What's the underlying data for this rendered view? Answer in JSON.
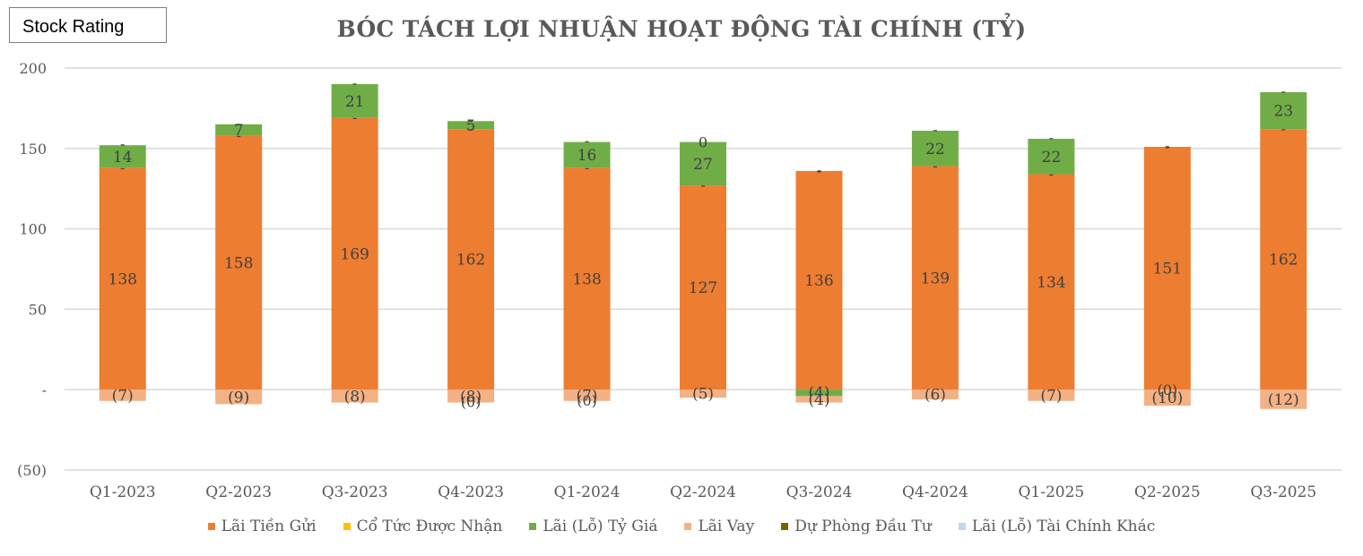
{
  "badge": "Stock Rating",
  "chart_data": {
    "type": "bar",
    "stacked": true,
    "title": "BÓC TÁCH LỢI NHUẬN HOẠT ĐỘNG TÀI CHÍNH (TỶ)",
    "xlabel": "",
    "ylabel": "",
    "ylim": [
      -50,
      200
    ],
    "yticks": [
      200,
      150,
      100,
      50,
      0,
      -50
    ],
    "ytick_labels": [
      "200",
      "150",
      "100",
      "50",
      "-",
      "(50)"
    ],
    "grid": true,
    "legend_position": "bottom",
    "categories": [
      "Q1-2023",
      "Q2-2023",
      "Q3-2023",
      "Q4-2023",
      "Q1-2024",
      "Q2-2024",
      "Q3-2024",
      "Q4-2024",
      "Q1-2025",
      "Q2-2025",
      "Q3-2025"
    ],
    "series": [
      {
        "name": "Lãi Tiền Gửi",
        "color": "#ed7d31",
        "values": [
          138,
          158,
          169,
          162,
          138,
          127,
          136,
          139,
          134,
          151,
          162
        ],
        "labels": [
          "138",
          "158",
          "169",
          "162",
          "138",
          "127",
          "136",
          "139",
          "134",
          "151",
          "162"
        ]
      },
      {
        "name": "Cổ Tức Được Nhận",
        "color": "#ffc000",
        "values": [
          0,
          0,
          0,
          0,
          0,
          0,
          0,
          0,
          0,
          0,
          0
        ],
        "labels": [
          "-",
          "-",
          "-",
          "-",
          "-",
          "-",
          "-",
          "-",
          "-",
          "-",
          "-"
        ]
      },
      {
        "name": "Lãi (Lỗ) Tỷ Giá",
        "color": "#70ad47",
        "values": [
          14,
          7,
          21,
          5,
          16,
          27,
          0,
          22,
          22,
          0,
          23
        ],
        "labels": [
          "14",
          "7",
          "21",
          "5",
          "16",
          "27",
          "",
          "22",
          "22",
          "",
          "23"
        ]
      },
      {
        "name": "Lãi Vay",
        "color": "#f4b183",
        "values": [
          -7,
          -9,
          -8,
          -8,
          -7,
          -5,
          -4,
          -6,
          -7,
          -10,
          -12
        ],
        "labels": [
          "(7)",
          "(9)",
          "(8)",
          "(8)",
          "(7)",
          "(5)",
          "(4)",
          "(6)",
          "(7)",
          "(10)",
          "(12)"
        ]
      },
      {
        "name": "Dự Phòng Đầu Tư",
        "color": "#7f6000",
        "values": [
          0,
          0,
          0,
          0,
          0,
          0,
          0,
          0,
          0,
          0,
          0
        ],
        "labels": [
          "",
          "",
          "",
          "(0)",
          "(0)",
          "",
          "",
          "",
          "",
          "(0)",
          ""
        ]
      },
      {
        "name": "Lãi (Lỗ) Tài Chính Khác",
        "color": "#bdd7ee",
        "values": [
          0,
          0,
          0,
          0,
          0,
          0,
          0,
          0,
          0,
          0,
          0
        ],
        "labels": [
          "-",
          "-",
          "-",
          "-",
          "-",
          "0",
          "-",
          "-",
          "-",
          "-",
          "-"
        ]
      }
    ],
    "extra_segments": [
      {
        "category_index": 6,
        "series": "Lãi (Lỗ) Tỷ Giá",
        "value": -4,
        "label": "(4)"
      }
    ]
  }
}
